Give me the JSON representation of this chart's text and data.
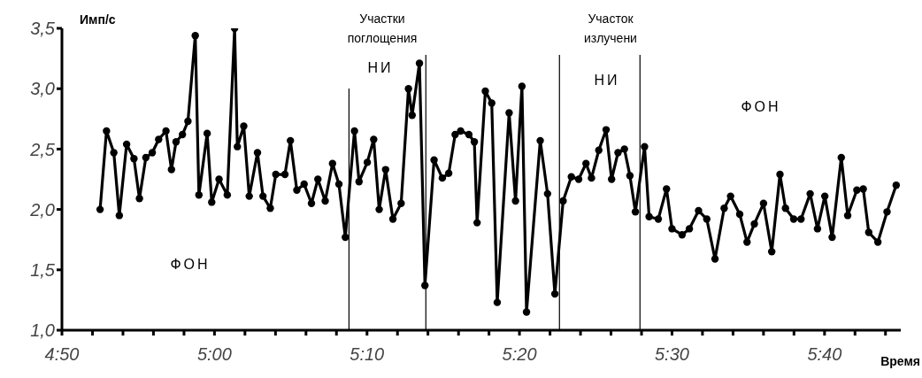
{
  "chart_data": {
    "type": "line",
    "ylabel": "Имп/с",
    "xlabel": "Время",
    "x": [
      4.875,
      4.882,
      4.89,
      4.896,
      4.904,
      4.912,
      4.918,
      4.925,
      4.932,
      4.939,
      4.947,
      4.953,
      4.958,
      4.965,
      4.971,
      4.979,
      4.983,
      4.992,
      4.997,
      5.005,
      5.014,
      5.022,
      5.025,
      5.032,
      5.038,
      5.047,
      5.053,
      5.061,
      5.067,
      5.077,
      5.083,
      5.09,
      5.098,
      5.106,
      5.113,
      5.121,
      5.129,
      5.136,
      5.143,
      5.153,
      5.158,
      5.167,
      5.174,
      5.18,
      5.187,
      5.195,
      5.204,
      5.212,
      5.216,
      5.224,
      5.23,
      5.24,
      5.249,
      5.256,
      5.263,
      5.269,
      5.278,
      5.284,
      5.287,
      5.296,
      5.303,
      5.309,
      5.322,
      5.329,
      5.336,
      5.341,
      5.356,
      5.364,
      5.372,
      5.381,
      5.39,
      5.398,
      5.406,
      5.412,
      5.42,
      5.428,
      5.434,
      5.441,
      5.448,
      5.454,
      5.46,
      5.47,
      5.475,
      5.485,
      5.494,
      5.5,
      5.511,
      5.519,
      5.529,
      5.538,
      5.547,
      5.557,
      5.564,
      5.574,
      5.582,
      5.59,
      5.6,
      5.609,
      5.618,
      5.624,
      5.633,
      5.641,
      5.651,
      5.659,
      5.667,
      5.675,
      5.685,
      5.692,
      5.702,
      5.709,
      5.715,
      5.725,
      5.735,
      5.745
    ],
    "series": [
      {
        "color": "#000000",
        "values": [
          2.0,
          2.65,
          2.47,
          1.95,
          2.54,
          2.42,
          2.09,
          2.43,
          2.47,
          2.58,
          2.65,
          2.33,
          2.56,
          2.62,
          2.73,
          3.44,
          2.12,
          2.63,
          2.06,
          2.25,
          2.12,
          3.5,
          2.52,
          2.69,
          2.11,
          2.47,
          2.11,
          2.01,
          2.29,
          2.29,
          2.57,
          2.16,
          2.21,
          2.05,
          2.25,
          2.07,
          2.38,
          2.21,
          1.77,
          2.65,
          2.23,
          2.39,
          2.58,
          2.0,
          2.33,
          1.92,
          2.05,
          3.0,
          2.78,
          3.21,
          1.37,
          2.41,
          2.26,
          2.3,
          2.62,
          2.65,
          2.62,
          2.56,
          1.89,
          2.98,
          2.88,
          1.23,
          2.8,
          2.07,
          3.02,
          1.15,
          2.57,
          2.13,
          1.3,
          2.07,
          2.27,
          2.25,
          2.38,
          2.26,
          2.49,
          2.66,
          2.25,
          2.47,
          2.5,
          2.28,
          1.98,
          2.52,
          1.94,
          1.92,
          2.17,
          1.84,
          1.79,
          1.84,
          1.99,
          1.92,
          1.59,
          2.01,
          2.11,
          1.96,
          1.73,
          1.88,
          2.05,
          1.65,
          2.29,
          2.01,
          1.92,
          1.92,
          2.13,
          1.84,
          2.11,
          1.77,
          2.43,
          1.95,
          2.16,
          2.17,
          1.81,
          1.73,
          1.98,
          2.2
        ]
      }
    ],
    "xlim": [
      4.8333,
      5.75
    ],
    "xticks": [
      {
        "value": 4.8333,
        "label": "4:50"
      },
      {
        "value": 4.8667,
        "label": null
      },
      {
        "value": 4.9,
        "label": null
      },
      {
        "value": 4.9333,
        "label": null
      },
      {
        "value": 4.9667,
        "label": null
      },
      {
        "value": 5,
        "label": "5:00"
      },
      {
        "value": 5.0333,
        "label": null
      },
      {
        "value": 5.0667,
        "label": null
      },
      {
        "value": 5.1,
        "label": null
      },
      {
        "value": 5.1333,
        "label": null
      },
      {
        "value": 5.1667,
        "label": "5:10"
      },
      {
        "value": 5.2,
        "label": null
      },
      {
        "value": 5.2333,
        "label": null
      },
      {
        "value": 5.2667,
        "label": null
      },
      {
        "value": 5.3,
        "label": null
      },
      {
        "value": 5.3333,
        "label": "5:20"
      },
      {
        "value": 5.3667,
        "label": null
      },
      {
        "value": 5.4,
        "label": null
      },
      {
        "value": 5.4333,
        "label": null
      },
      {
        "value": 5.4667,
        "label": null
      },
      {
        "value": 5.5,
        "label": "5:30"
      },
      {
        "value": 5.5333,
        "label": null
      },
      {
        "value": 5.5667,
        "label": null
      },
      {
        "value": 5.6,
        "label": null
      },
      {
        "value": 5.6333,
        "label": null
      },
      {
        "value": 5.6667,
        "label": "5:40"
      },
      {
        "value": 5.7,
        "label": null
      },
      {
        "value": 5.7333,
        "label": null
      }
    ],
    "ylim": [
      1.0,
      3.5
    ],
    "yticks": [
      {
        "value": 1.0,
        "label": "1,0"
      },
      {
        "value": 1.5,
        "label": "1,5"
      },
      {
        "value": 2.0,
        "label": "2,0"
      },
      {
        "value": 2.5,
        "label": "2,5"
      },
      {
        "value": 3.0,
        "label": "3,0"
      },
      {
        "value": 3.5,
        "label": "3,5"
      }
    ],
    "ref_lines": [
      {
        "axis": "x",
        "value": 5.147,
        "color": "#000000"
      },
      {
        "axis": "x",
        "value": 5.231,
        "color": "#000000"
      },
      {
        "axis": "x",
        "value": 5.377,
        "color": "#000000"
      },
      {
        "axis": "x",
        "value": 5.465,
        "color": "#000000"
      }
    ],
    "annotations": [
      "ФОН",
      "Участки\nпоглощения",
      "НИ",
      "Участок\nизлучени",
      "НИ",
      "ФОН"
    ],
    "marker": "circle",
    "line_style": "solid"
  }
}
